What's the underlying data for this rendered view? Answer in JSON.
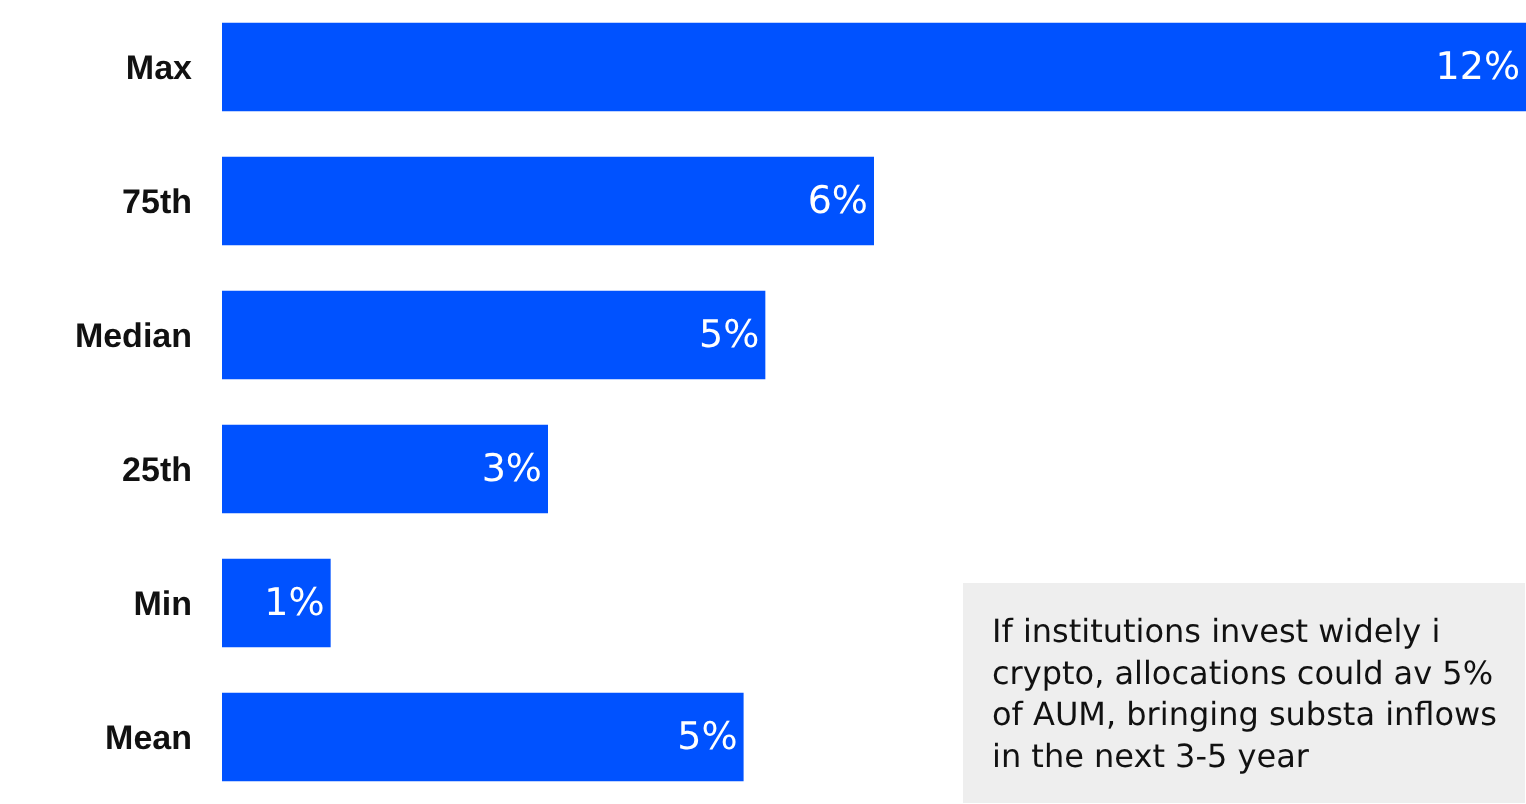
{
  "chart_data": {
    "type": "bar",
    "orientation": "horizontal",
    "relative": false,
    "categories": [
      "Max",
      "75th",
      "Median",
      "25th",
      "Min",
      "Mean"
    ],
    "values": [
      12,
      6,
      5,
      3,
      1,
      4.8
    ],
    "value_labels": [
      "12%",
      "6%",
      "5%",
      "3%",
      "1%",
      "5%"
    ],
    "color": "#0052ff",
    "xlim": [
      0,
      12
    ],
    "tick_labels": "y",
    "annotations": [
      "If institutions invest widely i crypto, allocations could av 5% of AUM, bringing substa inflows in the next 3-5 year"
    ]
  }
}
